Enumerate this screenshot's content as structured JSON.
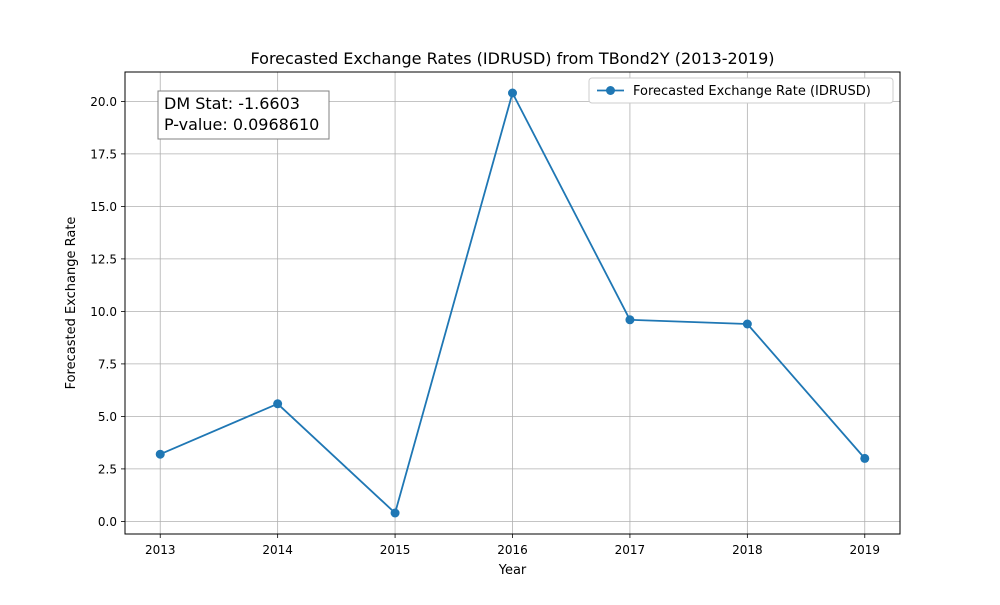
{
  "chart_data": {
    "type": "line",
    "title": "Forecasted Exchange Rates (IDRUSD) from TBond2Y (2013-2019)",
    "xlabel": "Year",
    "ylabel": "Forecasted Exchange Rate",
    "x": [
      2013,
      2014,
      2015,
      2016,
      2017,
      2018,
      2019
    ],
    "series": [
      {
        "name": "Forecasted Exchange Rate (IDRUSD)",
        "values": [
          3.2,
          5.6,
          0.4,
          20.4,
          9.6,
          9.4,
          3.0
        ],
        "color": "#1f77b4",
        "marker": "circle"
      }
    ],
    "xticks": [
      "2013",
      "2014",
      "2015",
      "2016",
      "2017",
      "2018",
      "2019"
    ],
    "yticks": [
      "0.0",
      "2.5",
      "5.0",
      "7.5",
      "10.0",
      "12.5",
      "15.0",
      "17.5",
      "20.0"
    ],
    "xlim": [
      2012.7,
      2019.3
    ],
    "ylim": [
      -0.6,
      21.4
    ],
    "grid": true,
    "legend_position": "upper right",
    "annotation": {
      "lines": [
        "DM Stat: -1.6603",
        "P-value: 0.0968610"
      ],
      "position": "upper left"
    }
  }
}
